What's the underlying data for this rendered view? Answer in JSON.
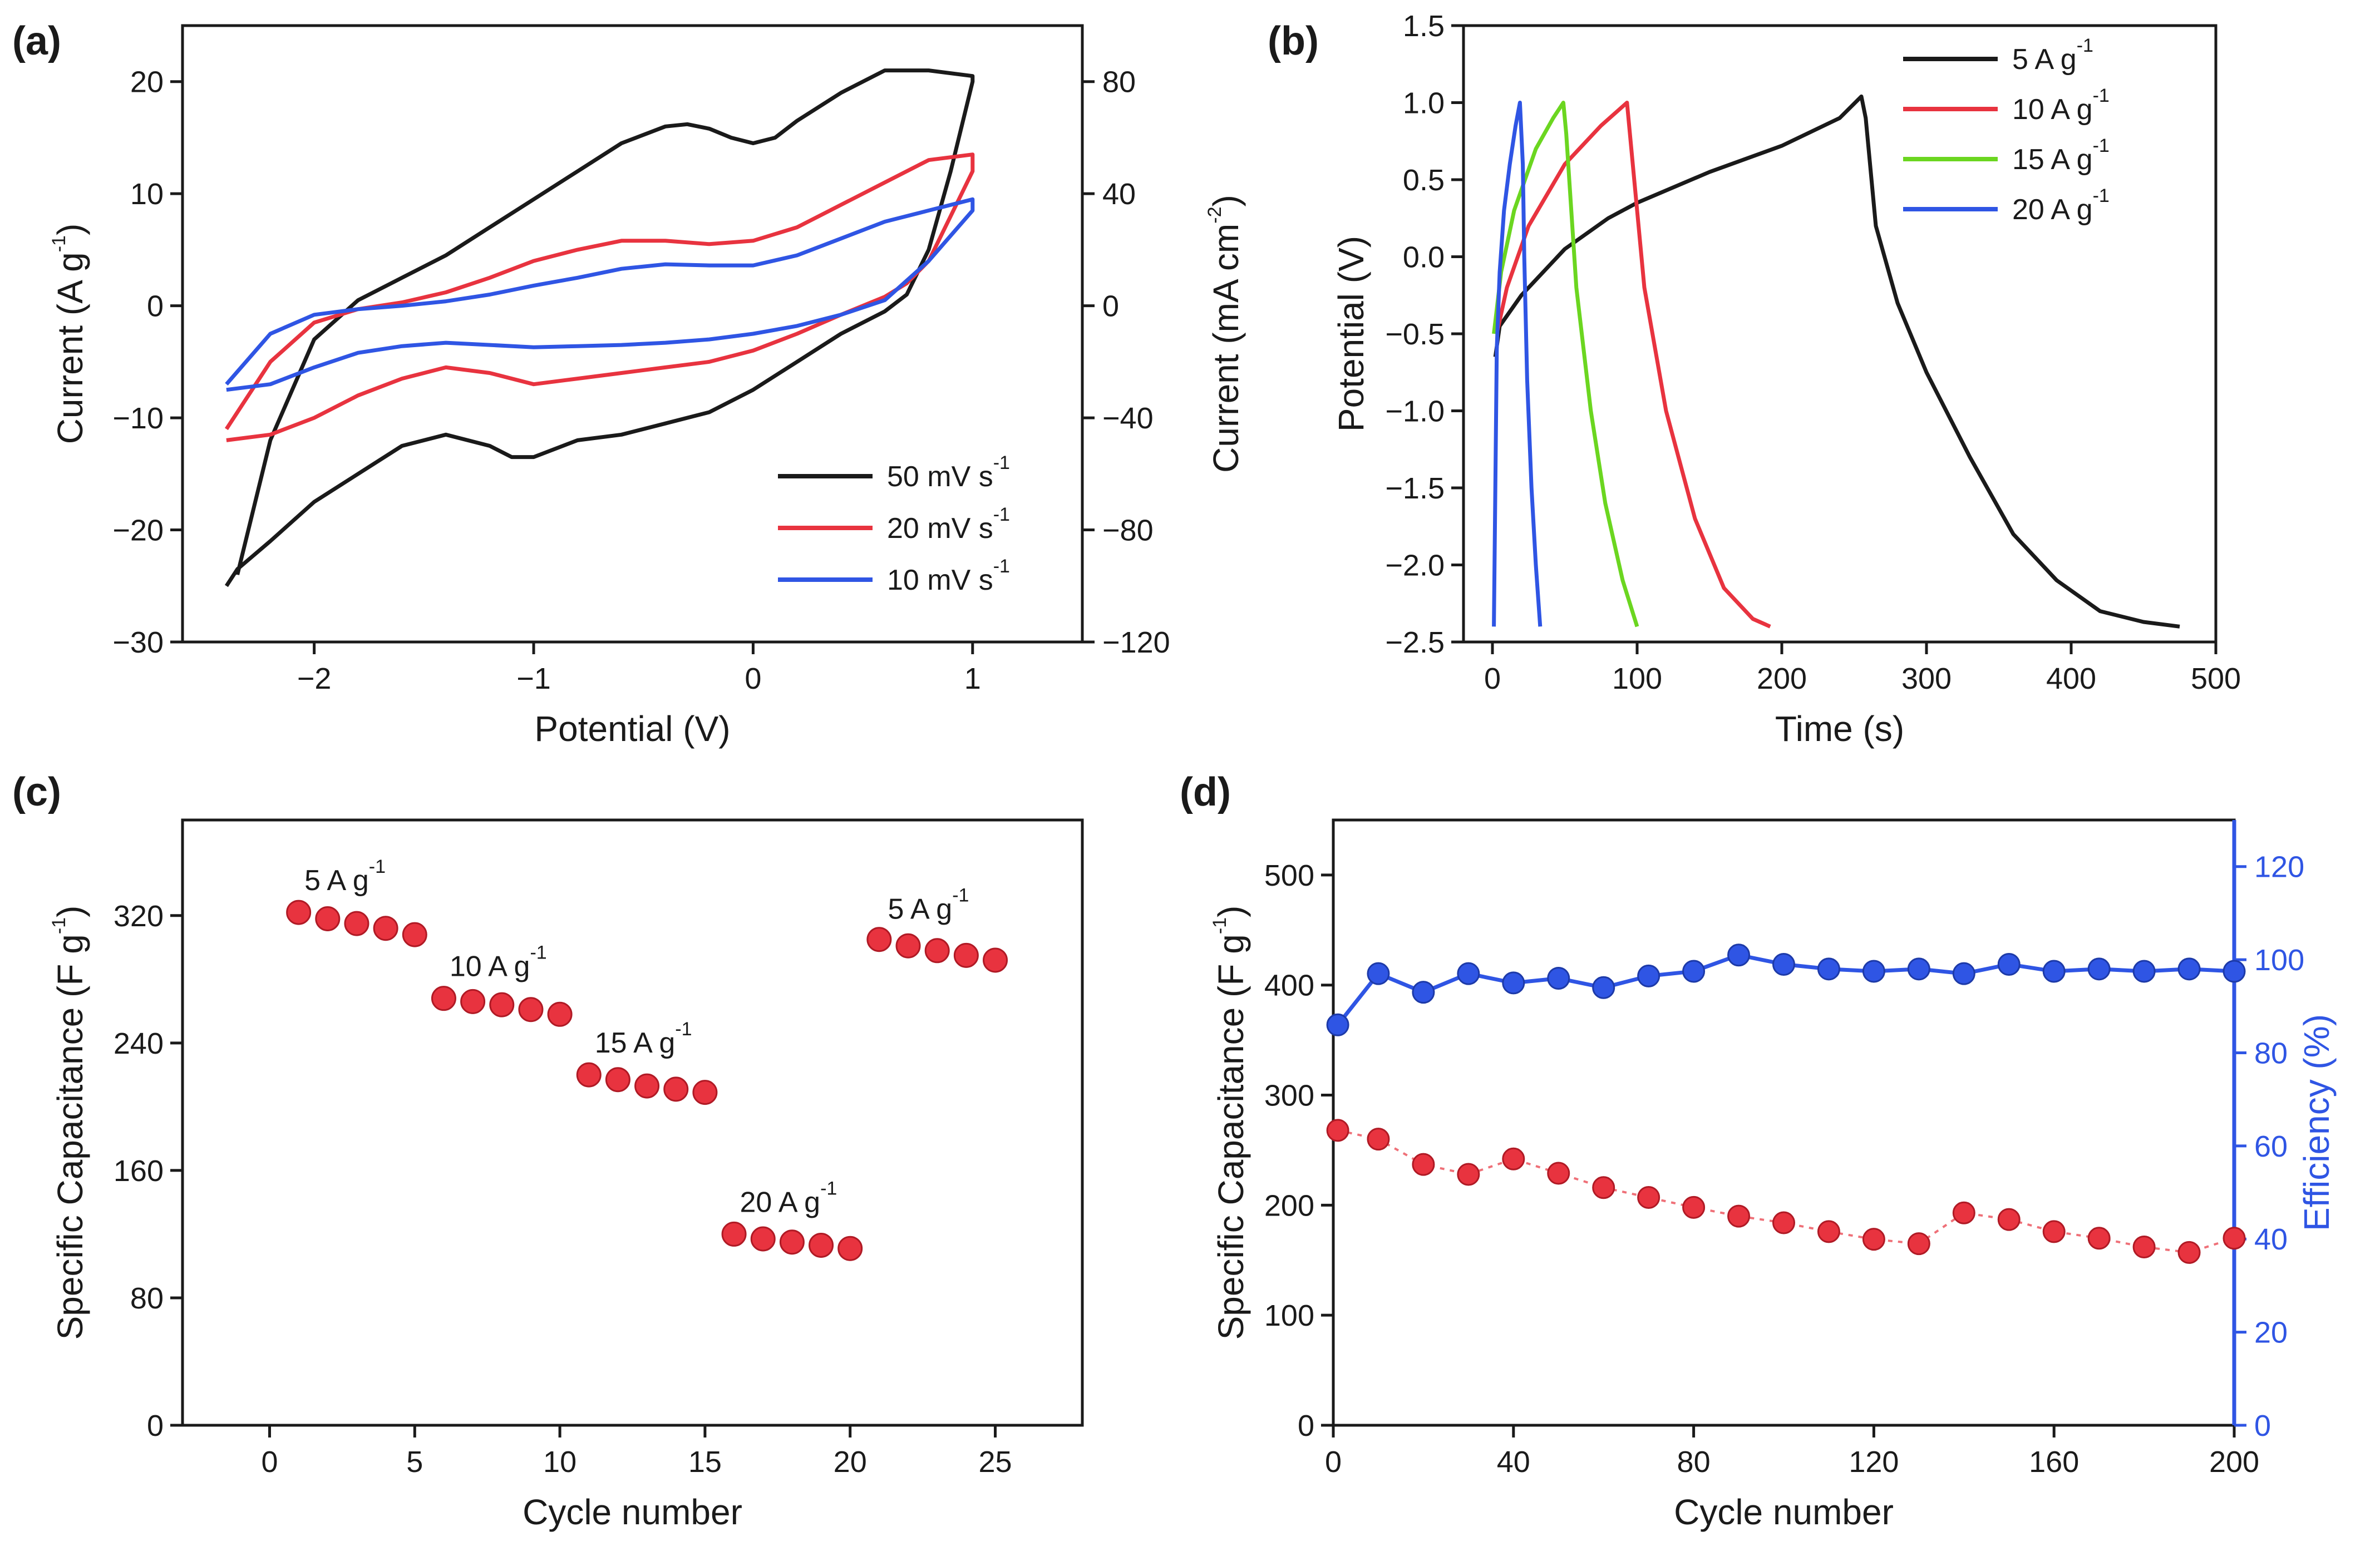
{
  "chart_data": [
    {
      "panel": "(a)",
      "type": "line",
      "title": "(a)",
      "xlabel": "Potential (V)",
      "ylabel": "Current (A g",
      "ylabel_sup": "-1",
      "ylabel_end": ")",
      "y2label": "Current (mA cm",
      "y2label_sup": "-2",
      "y2label_end": ")",
      "xlim": [
        -2.6,
        1.5
      ],
      "ylim": [
        -30,
        25
      ],
      "y2lim": [
        -120,
        100
      ],
      "xticks": [
        -2,
        -1,
        0,
        1
      ],
      "xtick_labels": [
        "−2",
        "−1",
        "0",
        "1"
      ],
      "yticks": [
        -30,
        -20,
        -10,
        0,
        10,
        20
      ],
      "ytick_labels": [
        "−30",
        "−20",
        "−10",
        "0",
        "10",
        "20"
      ],
      "y2ticks": [
        -120,
        -80,
        -40,
        0,
        40,
        80
      ],
      "y2tick_labels": [
        "−120",
        "−80",
        "−40",
        "0",
        "40",
        "80"
      ],
      "legend_position": "bottom-right",
      "series": [
        {
          "name": "50 mV s",
          "sup": "-1",
          "color": "#1a1a1a",
          "x": [
            -2.35,
            -2.2,
            -2.0,
            -1.8,
            -1.6,
            -1.4,
            -1.2,
            -1.0,
            -0.8,
            -0.6,
            -0.4,
            -0.3,
            -0.2,
            -0.1,
            0.0,
            0.1,
            0.2,
            0.4,
            0.6,
            0.8,
            1.0,
            1.0,
            0.9,
            0.8,
            0.7,
            0.6,
            0.4,
            0.2,
            0.0,
            -0.2,
            -0.4,
            -0.6,
            -0.8,
            -1.0,
            -1.1,
            -1.2,
            -1.4,
            -1.6,
            -1.8,
            -2.0,
            -2.2,
            -2.35,
            -2.4
          ],
          "y": [
            -24,
            -12,
            -3,
            0.5,
            2.5,
            4.5,
            7,
            9.5,
            12,
            14.5,
            16,
            16.2,
            15.8,
            15,
            14.5,
            15,
            16.5,
            19,
            21,
            21,
            20.5,
            20,
            12,
            5,
            1,
            -0.5,
            -2.5,
            -5,
            -7.5,
            -9.5,
            -10.5,
            -11.5,
            -12,
            -13.5,
            -13.5,
            -12.5,
            -11.5,
            -12.5,
            -15,
            -17.5,
            -21,
            -23.5,
            -25
          ]
        },
        {
          "name": "20 mV s",
          "sup": "-1",
          "color": "#e8333f",
          "x": [
            -2.4,
            -2.2,
            -2.0,
            -1.8,
            -1.6,
            -1.4,
            -1.2,
            -1.0,
            -0.8,
            -0.6,
            -0.4,
            -0.2,
            0.0,
            0.2,
            0.4,
            0.6,
            0.8,
            1.0,
            1.0,
            0.9,
            0.8,
            0.7,
            0.6,
            0.4,
            0.2,
            0.0,
            -0.2,
            -0.4,
            -0.6,
            -0.8,
            -1.0,
            -1.2,
            -1.4,
            -1.6,
            -1.8,
            -2.0,
            -2.2,
            -2.4
          ],
          "y": [
            -11,
            -5,
            -1.5,
            -0.3,
            0.3,
            1.2,
            2.5,
            4,
            5,
            5.8,
            5.8,
            5.5,
            5.8,
            7,
            9,
            11,
            13,
            13.5,
            12,
            8,
            4,
            2,
            0.8,
            -0.8,
            -2.5,
            -4,
            -5,
            -5.5,
            -6,
            -6.5,
            -7,
            -6,
            -5.5,
            -6.5,
            -8,
            -10,
            -11.5,
            -12
          ]
        },
        {
          "name": "10 mV s",
          "sup": "-1",
          "color": "#2f55e4",
          "x": [
            -2.4,
            -2.2,
            -2.0,
            -1.8,
            -1.6,
            -1.4,
            -1.2,
            -1.0,
            -0.8,
            -0.6,
            -0.4,
            -0.2,
            0.0,
            0.2,
            0.4,
            0.6,
            0.8,
            1.0,
            1.0,
            0.8,
            0.6,
            0.4,
            0.2,
            0.0,
            -0.2,
            -0.4,
            -0.6,
            -0.8,
            -1.0,
            -1.2,
            -1.4,
            -1.6,
            -1.8,
            -2.0,
            -2.2,
            -2.4
          ],
          "y": [
            -7,
            -2.5,
            -0.8,
            -0.3,
            0,
            0.4,
            1,
            1.8,
            2.5,
            3.3,
            3.7,
            3.6,
            3.6,
            4.5,
            6,
            7.5,
            8.5,
            9.5,
            8.5,
            4,
            0.5,
            -0.8,
            -1.8,
            -2.5,
            -3,
            -3.3,
            -3.5,
            -3.6,
            -3.7,
            -3.5,
            -3.3,
            -3.6,
            -4.2,
            -5.5,
            -7,
            -7.5
          ]
        }
      ]
    },
    {
      "panel": "(b)",
      "type": "line",
      "title": "(b)",
      "xlabel": "Time (s)",
      "ylabel": "Potential (V)",
      "xlim": [
        -20,
        500
      ],
      "ylim": [
        -2.5,
        1.5
      ],
      "xticks": [
        0,
        100,
        200,
        300,
        400,
        500
      ],
      "xtick_labels": [
        "0",
        "100",
        "200",
        "300",
        "400",
        "500"
      ],
      "yticks": [
        -2.5,
        -2.0,
        -1.5,
        -1.0,
        -0.5,
        0.0,
        0.5,
        1.0,
        1.5
      ],
      "ytick_labels": [
        "−2.5",
        "−2.0",
        "−1.5",
        "−1.0",
        "−0.5",
        "0.0",
        "0.5",
        "1.0",
        "1.5"
      ],
      "legend_position": "top-right",
      "series": [
        {
          "name": "5 A g",
          "sup": "-1",
          "color": "#1a1a1a",
          "x": [
            2,
            5,
            20,
            50,
            80,
            100,
            150,
            200,
            240,
            255,
            258,
            265,
            280,
            300,
            330,
            360,
            390,
            420,
            450,
            475
          ],
          "y": [
            -0.65,
            -0.45,
            -0.25,
            0.05,
            0.25,
            0.35,
            0.55,
            0.72,
            0.9,
            1.04,
            0.9,
            0.2,
            -0.3,
            -0.75,
            -1.3,
            -1.8,
            -2.1,
            -2.3,
            -2.37,
            -2.4
          ]
        },
        {
          "name": "10 A g",
          "sup": "-1",
          "color": "#e8333f",
          "x": [
            3,
            10,
            25,
            50,
            75,
            93,
            95,
            105,
            120,
            140,
            160,
            180,
            192
          ],
          "y": [
            -0.5,
            -0.2,
            0.2,
            0.6,
            0.85,
            1.0,
            0.8,
            -0.2,
            -1.0,
            -1.7,
            -2.15,
            -2.35,
            -2.4
          ]
        },
        {
          "name": "15 A g",
          "sup": "-1",
          "color": "#6bd620",
          "x": [
            1,
            6,
            15,
            30,
            42,
            49,
            51,
            58,
            68,
            78,
            90,
            100
          ],
          "y": [
            -0.5,
            -0.1,
            0.3,
            0.7,
            0.9,
            1.0,
            0.8,
            -0.2,
            -1.0,
            -1.6,
            -2.1,
            -2.4
          ]
        },
        {
          "name": "20 A g",
          "sup": "-1",
          "color": "#2f55e4",
          "x": [
            1,
            2,
            3,
            5,
            8,
            12,
            16,
            19,
            21,
            22,
            24,
            27,
            30,
            33
          ],
          "y": [
            -2.4,
            -1.5,
            -0.6,
            -0.1,
            0.3,
            0.6,
            0.85,
            1.0,
            0.6,
            0.0,
            -0.8,
            -1.5,
            -2.0,
            -2.4
          ]
        }
      ]
    },
    {
      "panel": "(c)",
      "type": "scatter",
      "title": "(c)",
      "xlabel": "Cycle number",
      "ylabel": "Specific Capacitance (F g",
      "ylabel_sup": "-1",
      "ylabel_end": ")",
      "xlim": [
        -3,
        28
      ],
      "ylim": [
        0,
        380
      ],
      "xticks": [
        0,
        5,
        10,
        15,
        20,
        25
      ],
      "xtick_labels": [
        "0",
        "5",
        "10",
        "15",
        "20",
        "25"
      ],
      "yticks": [
        0,
        80,
        160,
        240,
        320
      ],
      "ytick_labels": [
        "0",
        "80",
        "160",
        "240",
        "320"
      ],
      "marker_color": "#e8333f",
      "x": [
        1,
        2,
        3,
        4,
        5,
        6,
        7,
        8,
        9,
        10,
        11,
        12,
        13,
        14,
        15,
        16,
        17,
        18,
        19,
        20,
        21,
        22,
        23,
        24,
        25
      ],
      "values": [
        322,
        318,
        315,
        312,
        308,
        268,
        266,
        264,
        261,
        258,
        220,
        217,
        213,
        211,
        209,
        120,
        117,
        115,
        113,
        111,
        305,
        301,
        298,
        295,
        292
      ],
      "annotations": [
        {
          "text": "5 A g",
          "sup": "-1",
          "x": 1.2,
          "y": 336
        },
        {
          "text": "10 A g",
          "sup": "-1",
          "x": 6.2,
          "y": 282
        },
        {
          "text": "15 A g",
          "sup": "-1",
          "x": 11.2,
          "y": 234
        },
        {
          "text": "20 A g",
          "sup": "-1",
          "x": 16.2,
          "y": 134
        },
        {
          "text": "5 A g",
          "sup": "-1",
          "x": 21.3,
          "y": 318
        }
      ]
    },
    {
      "panel": "(d)",
      "type": "scatter",
      "title": "(d)",
      "xlabel": "Cycle number",
      "ylabel": "Specific Capacitance (F g",
      "ylabel_sup": "-1",
      "ylabel_end": ")",
      "y2label": "Efficiency (%)",
      "xlim": [
        0,
        200
      ],
      "ylim": [
        0,
        550
      ],
      "y2lim": [
        0,
        130
      ],
      "xticks": [
        0,
        40,
        80,
        120,
        160,
        200
      ],
      "xtick_labels": [
        "0",
        "40",
        "80",
        "120",
        "160",
        "200"
      ],
      "yticks": [
        0,
        100,
        200,
        300,
        400,
        500
      ],
      "ytick_labels": [
        "0",
        "100",
        "200",
        "300",
        "400",
        "500"
      ],
      "y2ticks": [
        0,
        20,
        40,
        60,
        80,
        100,
        120
      ],
      "y2tick_labels": [
        "0",
        "20",
        "40",
        "60",
        "80",
        "100",
        "120"
      ],
      "y2_color": "#2f55e4",
      "series": [
        {
          "name": "Specific capacitance",
          "axis": "left",
          "color": "#e8333f",
          "x": [
            1,
            10,
            20,
            30,
            40,
            50,
            60,
            70,
            80,
            90,
            100,
            110,
            120,
            130,
            140,
            150,
            160,
            170,
            180,
            190,
            200
          ],
          "values": [
            268,
            260,
            237,
            228,
            242,
            229,
            216,
            207,
            198,
            190,
            184,
            176,
            169,
            165,
            193,
            187,
            176,
            170,
            162,
            157,
            170
          ]
        },
        {
          "name": "Efficiency",
          "axis": "right",
          "color": "#2f55e4",
          "x": [
            1,
            10,
            20,
            30,
            40,
            50,
            60,
            70,
            80,
            90,
            100,
            110,
            120,
            130,
            140,
            150,
            160,
            170,
            180,
            190,
            200
          ],
          "values": [
            86,
            97,
            93,
            97,
            95,
            96,
            94,
            96.5,
            97.5,
            101,
            99,
            98,
            97.5,
            98,
            97,
            99,
            97.5,
            98,
            97.5,
            98,
            97.5
          ]
        }
      ]
    }
  ]
}
